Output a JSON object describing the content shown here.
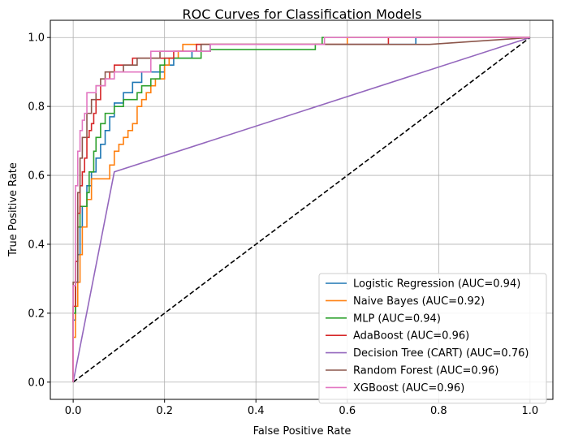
{
  "chart_data": {
    "type": "line",
    "title": "ROC Curves for Classification Models",
    "xlabel": "False Positive Rate",
    "ylabel": "True Positive Rate",
    "xlim": [
      -0.05,
      1.05
    ],
    "ylim": [
      -0.05,
      1.05
    ],
    "xticks": [
      "0.0",
      "0.2",
      "0.4",
      "0.6",
      "0.8",
      "1.0"
    ],
    "yticks": [
      "0.0",
      "0.2",
      "0.4",
      "0.6",
      "0.8",
      "1.0"
    ],
    "grid": true,
    "legend_position": "lower-right",
    "series": [
      {
        "name": "Logistic Regression (AUC=0.94)",
        "color": "#1f77b4",
        "points": [
          [
            0,
            0
          ],
          [
            0,
            0.18
          ],
          [
            0.005,
            0.18
          ],
          [
            0.005,
            0.29
          ],
          [
            0.01,
            0.29
          ],
          [
            0.01,
            0.37
          ],
          [
            0.015,
            0.37
          ],
          [
            0.015,
            0.45
          ],
          [
            0.02,
            0.45
          ],
          [
            0.02,
            0.51
          ],
          [
            0.03,
            0.51
          ],
          [
            0.03,
            0.57
          ],
          [
            0.04,
            0.57
          ],
          [
            0.04,
            0.61
          ],
          [
            0.05,
            0.61
          ],
          [
            0.05,
            0.65
          ],
          [
            0.06,
            0.65
          ],
          [
            0.06,
            0.69
          ],
          [
            0.07,
            0.69
          ],
          [
            0.07,
            0.73
          ],
          [
            0.08,
            0.73
          ],
          [
            0.08,
            0.77
          ],
          [
            0.09,
            0.77
          ],
          [
            0.09,
            0.81
          ],
          [
            0.11,
            0.81
          ],
          [
            0.11,
            0.84
          ],
          [
            0.13,
            0.84
          ],
          [
            0.13,
            0.87
          ],
          [
            0.15,
            0.87
          ],
          [
            0.15,
            0.9
          ],
          [
            0.2,
            0.9
          ],
          [
            0.2,
            0.92
          ],
          [
            0.22,
            0.92
          ],
          [
            0.22,
            0.94
          ],
          [
            0.26,
            0.94
          ],
          [
            0.26,
            0.96
          ],
          [
            0.3,
            0.96
          ],
          [
            0.3,
            0.98
          ],
          [
            0.75,
            0.98
          ],
          [
            0.75,
            1.0
          ],
          [
            1.0,
            1.0
          ]
        ]
      },
      {
        "name": "Naive Bayes (AUC=0.92)",
        "color": "#ff7f0e",
        "points": [
          [
            0,
            0
          ],
          [
            0,
            0.13
          ],
          [
            0.005,
            0.13
          ],
          [
            0.005,
            0.22
          ],
          [
            0.01,
            0.22
          ],
          [
            0.01,
            0.29
          ],
          [
            0.015,
            0.29
          ],
          [
            0.015,
            0.37
          ],
          [
            0.02,
            0.37
          ],
          [
            0.02,
            0.45
          ],
          [
            0.03,
            0.45
          ],
          [
            0.03,
            0.53
          ],
          [
            0.04,
            0.53
          ],
          [
            0.04,
            0.59
          ],
          [
            0.08,
            0.59
          ],
          [
            0.08,
            0.63
          ],
          [
            0.09,
            0.63
          ],
          [
            0.09,
            0.67
          ],
          [
            0.1,
            0.67
          ],
          [
            0.1,
            0.69
          ],
          [
            0.11,
            0.69
          ],
          [
            0.11,
            0.71
          ],
          [
            0.12,
            0.71
          ],
          [
            0.12,
            0.73
          ],
          [
            0.13,
            0.73
          ],
          [
            0.13,
            0.75
          ],
          [
            0.14,
            0.75
          ],
          [
            0.14,
            0.8
          ],
          [
            0.15,
            0.8
          ],
          [
            0.15,
            0.82
          ],
          [
            0.16,
            0.82
          ],
          [
            0.16,
            0.84
          ],
          [
            0.17,
            0.84
          ],
          [
            0.17,
            0.86
          ],
          [
            0.18,
            0.86
          ],
          [
            0.18,
            0.88
          ],
          [
            0.2,
            0.88
          ],
          [
            0.2,
            0.92
          ],
          [
            0.21,
            0.92
          ],
          [
            0.21,
            0.94
          ],
          [
            0.23,
            0.94
          ],
          [
            0.23,
            0.96
          ],
          [
            0.24,
            0.96
          ],
          [
            0.24,
            0.98
          ],
          [
            0.6,
            0.98
          ],
          [
            0.6,
            1.0
          ],
          [
            0.78,
            1.0
          ],
          [
            0.78,
            1.0
          ],
          [
            1.0,
            1.0
          ]
        ]
      },
      {
        "name": "MLP (AUC=0.94)",
        "color": "#2ca02c",
        "points": [
          [
            0,
            0
          ],
          [
            0,
            0.2
          ],
          [
            0.005,
            0.2
          ],
          [
            0.005,
            0.35
          ],
          [
            0.01,
            0.35
          ],
          [
            0.01,
            0.45
          ],
          [
            0.015,
            0.45
          ],
          [
            0.015,
            0.51
          ],
          [
            0.03,
            0.51
          ],
          [
            0.03,
            0.55
          ],
          [
            0.035,
            0.55
          ],
          [
            0.035,
            0.61
          ],
          [
            0.045,
            0.61
          ],
          [
            0.045,
            0.67
          ],
          [
            0.05,
            0.67
          ],
          [
            0.05,
            0.71
          ],
          [
            0.06,
            0.71
          ],
          [
            0.06,
            0.75
          ],
          [
            0.07,
            0.75
          ],
          [
            0.07,
            0.78
          ],
          [
            0.09,
            0.78
          ],
          [
            0.09,
            0.8
          ],
          [
            0.11,
            0.8
          ],
          [
            0.11,
            0.82
          ],
          [
            0.14,
            0.82
          ],
          [
            0.14,
            0.84
          ],
          [
            0.15,
            0.84
          ],
          [
            0.15,
            0.86
          ],
          [
            0.17,
            0.86
          ],
          [
            0.17,
            0.88
          ],
          [
            0.19,
            0.88
          ],
          [
            0.19,
            0.92
          ],
          [
            0.2,
            0.92
          ],
          [
            0.2,
            0.94
          ],
          [
            0.28,
            0.94
          ],
          [
            0.28,
            0.96
          ],
          [
            0.3,
            0.96
          ],
          [
            0.3,
            0.965
          ],
          [
            0.53,
            0.965
          ],
          [
            0.53,
            0.98
          ],
          [
            0.545,
            0.98
          ],
          [
            0.545,
            1.0
          ],
          [
            0.57,
            1.0
          ],
          [
            0.57,
            1.0
          ],
          [
            1.0,
            1.0
          ]
        ]
      },
      {
        "name": "AdaBoost (AUC=0.96)",
        "color": "#d62728",
        "points": [
          [
            0,
            0
          ],
          [
            0,
            0.22
          ],
          [
            0.005,
            0.22
          ],
          [
            0.005,
            0.35
          ],
          [
            0.01,
            0.35
          ],
          [
            0.01,
            0.49
          ],
          [
            0.015,
            0.49
          ],
          [
            0.015,
            0.57
          ],
          [
            0.02,
            0.57
          ],
          [
            0.02,
            0.61
          ],
          [
            0.025,
            0.61
          ],
          [
            0.025,
            0.65
          ],
          [
            0.03,
            0.65
          ],
          [
            0.03,
            0.71
          ],
          [
            0.035,
            0.71
          ],
          [
            0.035,
            0.73
          ],
          [
            0.04,
            0.73
          ],
          [
            0.04,
            0.75
          ],
          [
            0.045,
            0.75
          ],
          [
            0.045,
            0.78
          ],
          [
            0.05,
            0.78
          ],
          [
            0.05,
            0.82
          ],
          [
            0.06,
            0.82
          ],
          [
            0.06,
            0.86
          ],
          [
            0.07,
            0.86
          ],
          [
            0.07,
            0.88
          ],
          [
            0.08,
            0.88
          ],
          [
            0.08,
            0.9
          ],
          [
            0.09,
            0.9
          ],
          [
            0.09,
            0.92
          ],
          [
            0.13,
            0.92
          ],
          [
            0.13,
            0.94
          ],
          [
            0.22,
            0.94
          ],
          [
            0.22,
            0.96
          ],
          [
            0.27,
            0.96
          ],
          [
            0.27,
            0.98
          ],
          [
            0.69,
            0.98
          ],
          [
            0.69,
            1.0
          ],
          [
            1.0,
            1.0
          ]
        ]
      },
      {
        "name": "Decision Tree (CART) (AUC=0.76)",
        "color": "#9467bd",
        "points": [
          [
            0,
            0
          ],
          [
            0.09,
            0.61
          ],
          [
            1.0,
            1.0
          ]
        ]
      },
      {
        "name": "Random Forest (AUC=0.96)",
        "color": "#8c564b",
        "points": [
          [
            0,
            0
          ],
          [
            0,
            0.29
          ],
          [
            0.01,
            0.29
          ],
          [
            0.01,
            0.55
          ],
          [
            0.015,
            0.55
          ],
          [
            0.015,
            0.65
          ],
          [
            0.02,
            0.65
          ],
          [
            0.02,
            0.71
          ],
          [
            0.03,
            0.71
          ],
          [
            0.03,
            0.78
          ],
          [
            0.04,
            0.78
          ],
          [
            0.04,
            0.82
          ],
          [
            0.05,
            0.82
          ],
          [
            0.05,
            0.86
          ],
          [
            0.06,
            0.86
          ],
          [
            0.06,
            0.88
          ],
          [
            0.07,
            0.88
          ],
          [
            0.07,
            0.9
          ],
          [
            0.11,
            0.9
          ],
          [
            0.11,
            0.92
          ],
          [
            0.14,
            0.92
          ],
          [
            0.14,
            0.94
          ],
          [
            0.19,
            0.94
          ],
          [
            0.19,
            0.96
          ],
          [
            0.28,
            0.96
          ],
          [
            0.28,
            0.98
          ],
          [
            0.78,
            0.98
          ],
          [
            1.0,
            1.0
          ]
        ]
      },
      {
        "name": "XGBoost (AUC=0.96)",
        "color": "#e377c2",
        "points": [
          [
            0,
            0
          ],
          [
            0,
            0.28
          ],
          [
            0.005,
            0.28
          ],
          [
            0.005,
            0.57
          ],
          [
            0.01,
            0.57
          ],
          [
            0.01,
            0.67
          ],
          [
            0.015,
            0.67
          ],
          [
            0.015,
            0.73
          ],
          [
            0.02,
            0.73
          ],
          [
            0.02,
            0.76
          ],
          [
            0.025,
            0.76
          ],
          [
            0.025,
            0.78
          ],
          [
            0.03,
            0.78
          ],
          [
            0.03,
            0.84
          ],
          [
            0.05,
            0.84
          ],
          [
            0.05,
            0.86
          ],
          [
            0.07,
            0.86
          ],
          [
            0.07,
            0.88
          ],
          [
            0.09,
            0.88
          ],
          [
            0.09,
            0.9
          ],
          [
            0.17,
            0.9
          ],
          [
            0.17,
            0.96
          ],
          [
            0.3,
            0.96
          ],
          [
            0.3,
            0.98
          ],
          [
            0.55,
            0.98
          ],
          [
            0.55,
            1.0
          ],
          [
            1.0,
            1.0
          ]
        ]
      }
    ],
    "baseline": {
      "color": "#000000",
      "points": [
        [
          0,
          0
        ],
        [
          1,
          1
        ]
      ]
    }
  }
}
